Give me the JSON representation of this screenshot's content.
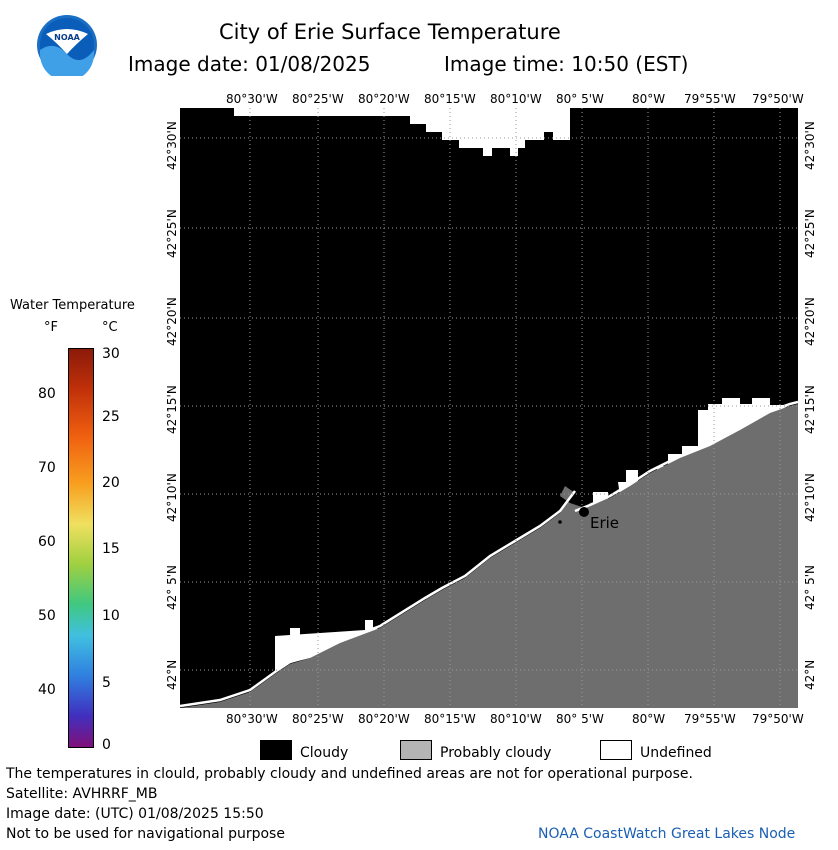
{
  "header": {
    "title": "City of Erie Surface Temperature",
    "image_date": "Image date: 01/08/2025",
    "image_time": "Image time: 10:50 (EST)",
    "logo_text": "NOAA"
  },
  "map": {
    "lon_labels_top": [
      "80°30'W",
      "80°25'W",
      "80°20'W",
      "80°15'W",
      "80°10'W",
      "80° 5'W",
      "80°W",
      "79°55'W",
      "79°50'W"
    ],
    "lon_labels_bottom": [
      "80°30'W",
      "80°25'W",
      "80°20'W",
      "80°15'W",
      "80°10'W",
      "80° 5'W",
      "80°W",
      "79°55'W",
      "79°50'W"
    ],
    "lat_labels": [
      "42°30'N",
      "42°25'N",
      "42°20'N",
      "42°15'N",
      "42°10'N",
      "42° 5'N",
      "42°N"
    ],
    "city_label": "Erie"
  },
  "colorbar": {
    "title": "Water Temperature",
    "unit_f": "°F",
    "unit_c": "°C",
    "f_ticks": [
      "80",
      "70",
      "60",
      "50",
      "40"
    ],
    "c_ticks": [
      "30",
      "25",
      "20",
      "15",
      "10",
      "5",
      "0"
    ]
  },
  "legend": {
    "cloudy": "Cloudy",
    "probably_cloudy": "Probably cloudy",
    "undefined": "Undefined",
    "colors": {
      "cloudy": "#000000",
      "probably_cloudy": "#b4b4b4",
      "undefined": "#ffffff",
      "land": "#6e6e6e"
    }
  },
  "footer": {
    "line1": "The temperatures in clould, probably cloudy and undefined areas are not for operational purpose.",
    "line2": "Satellite: AVHRRF_MB",
    "line3": "Image date: (UTC) 01/08/2025  15:50",
    "line4": "Not to be used for navigational purpose",
    "credit": "NOAA CoastWatch Great Lakes Node"
  }
}
